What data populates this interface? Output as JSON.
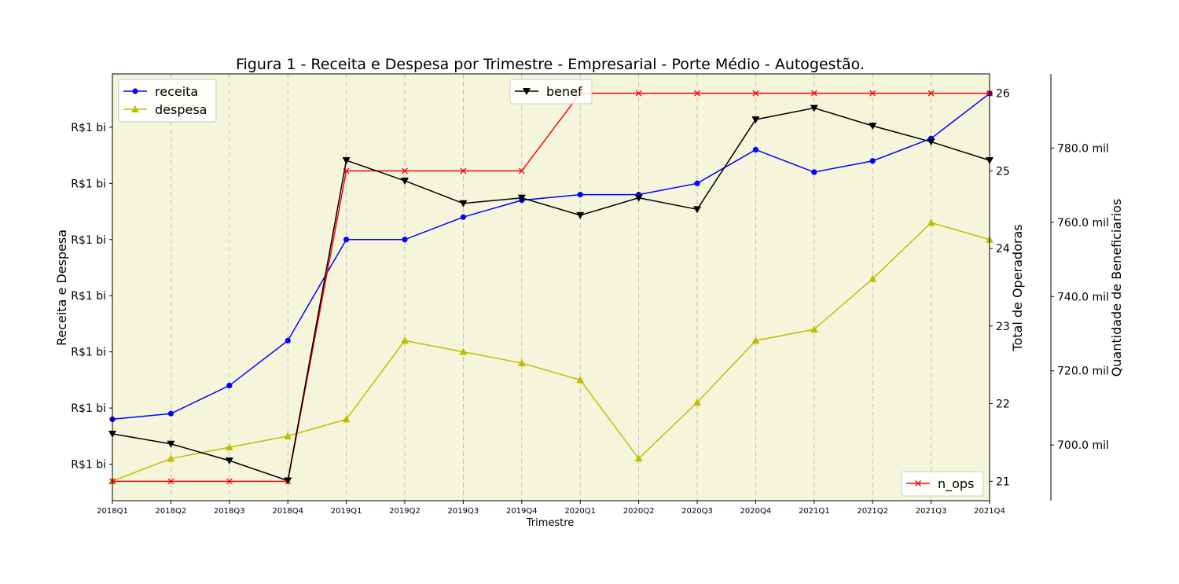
{
  "chart_data": {
    "type": "line",
    "title": "Figura 1 - Receita e Despesa por Trimestre - Empresarial - Porte Médio - Autogestão.",
    "xlabel": "Trimestre",
    "categories": [
      "2018Q1",
      "2018Q2",
      "2018Q3",
      "2018Q4",
      "2019Q1",
      "2019Q2",
      "2019Q3",
      "2019Q4",
      "2020Q1",
      "2020Q2",
      "2020Q3",
      "2020Q4",
      "2021Q1",
      "2021Q2",
      "2021Q3",
      "2021Q4"
    ],
    "left_axis": {
      "label": "Receita e Despesa",
      "ylim": [
        0.735,
        1.495
      ],
      "ticks": [
        0.8,
        0.9,
        1.0,
        1.1,
        1.2,
        1.3,
        1.4
      ],
      "tick_labels": [
        "R$1 bi",
        "R$1 bi",
        "R$1 bi",
        "R$1 bi",
        "R$1 bi",
        "R$1 bi",
        "R$1 bi"
      ]
    },
    "right_axis_ops": {
      "label": "Total de Operadoras",
      "ylim": [
        20.75,
        26.25
      ],
      "ticks": [
        21,
        22,
        23,
        24,
        25,
        26
      ],
      "tick_labels": [
        "21",
        "22",
        "23",
        "24",
        "25",
        "26"
      ]
    },
    "right_axis_benef": {
      "label": "Quantidade de Beneficiarios",
      "ylim": [
        685,
        800
      ],
      "ticks": [
        700,
        720,
        740,
        760,
        780
      ],
      "tick_labels": [
        "700.0 mil",
        "720.0 mil",
        "740.0 mil",
        "760.0 mil",
        "780.0 mil"
      ]
    },
    "series": [
      {
        "name": "receita",
        "axis": "left",
        "color": "#0000ff",
        "marker": "circle",
        "values": [
          0.88,
          0.89,
          0.94,
          1.02,
          1.2,
          1.2,
          1.24,
          1.27,
          1.28,
          1.28,
          1.3,
          1.36,
          1.32,
          1.34,
          1.38,
          1.46
        ]
      },
      {
        "name": "despesa",
        "axis": "left",
        "color": "#bfbf00",
        "marker": "triangle-up",
        "values": [
          0.77,
          0.81,
          0.83,
          0.85,
          0.88,
          1.02,
          1.0,
          0.98,
          0.95,
          0.81,
          0.91,
          1.02,
          1.04,
          1.13,
          1.23,
          1.2
        ]
      },
      {
        "name": "n_ops",
        "axis": "ops",
        "color": "#ff0000",
        "marker": "x",
        "values": [
          21,
          21,
          21,
          21,
          25,
          25,
          25,
          25,
          26,
          26,
          26,
          26,
          26,
          26,
          26,
          26
        ]
      },
      {
        "name": "benef",
        "axis": "benef",
        "color": "#000000",
        "marker": "triangle-down",
        "values": [
          703,
          700.3,
          695.8,
          690.4,
          776.7,
          771.2,
          765.1,
          766.6,
          761.9,
          766.6,
          763.5,
          787.7,
          790.8,
          786,
          781.7,
          776.7
        ]
      }
    ],
    "legends": [
      {
        "position": "upper-left",
        "items": [
          "receita",
          "despesa"
        ]
      },
      {
        "position": "upper-center",
        "items": [
          "benef"
        ]
      },
      {
        "position": "lower-right",
        "items": [
          "n_ops"
        ]
      }
    ],
    "grid": "vertical-dashed",
    "colors": {
      "plot_bg": "#f5f5dc",
      "grid": "#b0b0b0"
    }
  }
}
